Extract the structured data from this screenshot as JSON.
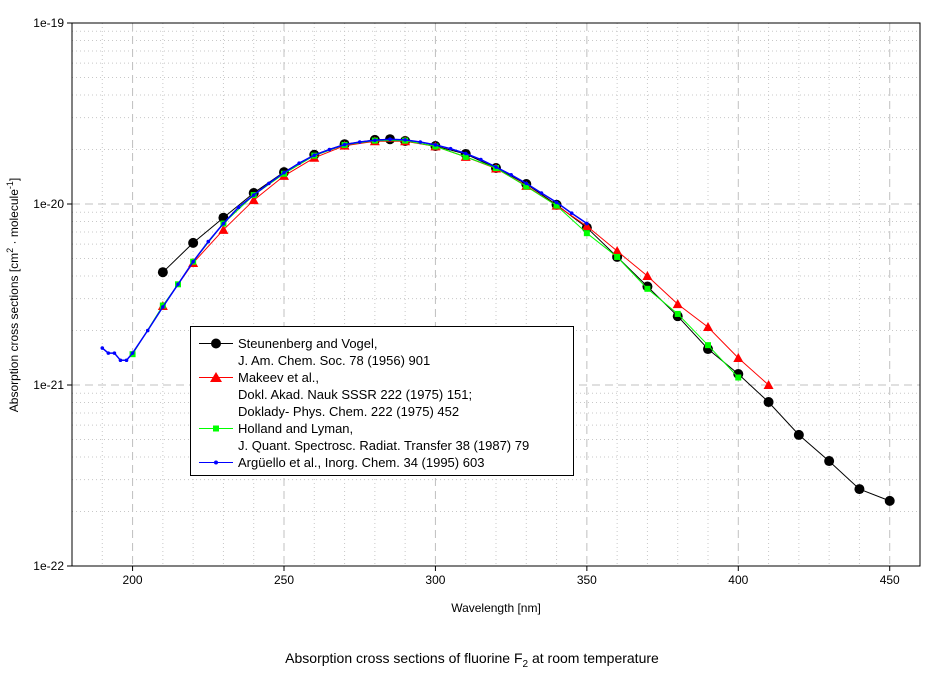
{
  "chart_data": {
    "type": "line",
    "title": "",
    "caption": "Absorption cross sections of fluorine F",
    "caption_sub": "2",
    "caption_tail": " at room temperature",
    "xlabel": "Wavelength [nm]",
    "ylabel_parts": [
      "Absorption cross sections [cm",
      "2",
      " · molecule",
      "-1",
      "]"
    ],
    "xlim": [
      180,
      460
    ],
    "ylim": [
      1e-22,
      1e-19
    ],
    "yscale": "log",
    "xticks": [
      200,
      250,
      300,
      350,
      400,
      450
    ],
    "xtick_labels": [
      "200",
      "250",
      "300",
      "350",
      "400",
      "450"
    ],
    "yticks": [
      1e-22,
      1e-21,
      1e-20,
      1e-19
    ],
    "ytick_labels": [
      "1e-22",
      "1e-21",
      "1e-20",
      "1e-19"
    ],
    "grid": true,
    "legend_placement": "lower-left-center",
    "series": [
      {
        "name": "Steunenberg and Vogel,",
        "name_lines": [
          "Steunenberg and Vogel,",
          "J. Am. Chem. Soc. 78 (1956) 901"
        ],
        "color": "#000000",
        "marker": "circle",
        "x": [
          210,
          220,
          230,
          240,
          250,
          260,
          270,
          280,
          285,
          290,
          300,
          310,
          320,
          330,
          340,
          350,
          360,
          370,
          380,
          390,
          400,
          410,
          420,
          430,
          440,
          450
        ],
        "y": [
          4.2e-21,
          6.1e-21,
          8.4e-21,
          1.15e-20,
          1.5e-20,
          1.87e-20,
          2.14e-20,
          2.26e-20,
          2.28e-20,
          2.23e-20,
          2.09e-20,
          1.89e-20,
          1.58e-20,
          1.29e-20,
          9.9e-21,
          7.4e-21,
          5.1e-21,
          3.5e-21,
          2.4e-21,
          1.58e-21,
          1.15e-21,
          8.05e-22,
          5.3e-22,
          3.8e-22,
          2.66e-22,
          2.29e-22
        ]
      },
      {
        "name": "Makeev et al.,",
        "name_lines": [
          "Makeev et al.,",
          "Dokl. Akad. Nauk SSSR 222 (1975) 151;",
          "Doklady- Phys. Chem. 222 (1975) 452"
        ],
        "color": "#ff0000",
        "marker": "triangle",
        "x": [
          210,
          220,
          230,
          240,
          250,
          260,
          270,
          280,
          290,
          300,
          310,
          320,
          330,
          340,
          350,
          360,
          370,
          380,
          390,
          400,
          410
        ],
        "y": [
          2.73e-21,
          4.72e-21,
          7.2e-21,
          1.05e-20,
          1.43e-20,
          1.8e-20,
          2.1e-20,
          2.22e-20,
          2.22e-20,
          2.08e-20,
          1.82e-20,
          1.57e-20,
          1.26e-20,
          9.8e-21,
          7.55e-21,
          5.5e-21,
          4e-21,
          2.8e-21,
          2.09e-21,
          1.41e-21,
          1e-21
        ]
      },
      {
        "name": "Holland and Lyman,",
        "name_lines": [
          "Holland and Lyman,",
          "J. Quant. Spectrosc. Radiat. Transfer 38 (1987) 79"
        ],
        "color": "#00ff00",
        "marker": "square",
        "x": [
          200,
          210,
          215,
          220,
          230,
          240,
          250,
          260,
          270,
          280,
          290,
          300,
          310,
          320,
          330,
          340,
          350,
          360,
          370,
          380,
          390,
          400
        ],
        "y": [
          1.48e-21,
          2.75e-21,
          3.6e-21,
          4.8e-21,
          7.8e-21,
          1.12e-20,
          1.47e-20,
          1.85e-20,
          2.12e-20,
          2.24e-20,
          2.24e-20,
          2.08e-20,
          1.82e-20,
          1.58e-20,
          1.25e-20,
          9.8e-21,
          6.9e-21,
          5.1e-21,
          3.4e-21,
          2.47e-21,
          1.66e-21,
          1.1e-21
        ]
      },
      {
        "name": "Argüello et al., Inorg. Chem. 34 (1995) 603",
        "name_lines": [
          "Argüello et al., Inorg. Chem. 34 (1995) 603"
        ],
        "color": "#0000ff",
        "marker": "dot",
        "x": [
          190,
          192,
          194,
          196,
          198,
          200,
          205,
          210,
          215,
          220,
          225,
          230,
          235,
          240,
          245,
          250,
          255,
          260,
          265,
          270,
          275,
          280,
          285,
          290,
          295,
          300,
          305,
          310,
          315,
          320,
          325,
          330,
          335,
          340,
          345,
          350
        ],
        "y": [
          1.6e-21,
          1.5e-21,
          1.5e-21,
          1.37e-21,
          1.37e-21,
          1.5e-21,
          2e-21,
          2.7e-21,
          3.6e-21,
          4.8e-21,
          6.2e-21,
          7.8e-21,
          9.6e-21,
          1.12e-20,
          1.3e-20,
          1.49e-20,
          1.68e-20,
          1.86e-20,
          2e-20,
          2.13e-20,
          2.2e-20,
          2.25e-20,
          2.28e-20,
          2.26e-20,
          2.2e-20,
          2.12e-20,
          2.02e-20,
          1.9e-20,
          1.76e-20,
          1.6e-20,
          1.45e-20,
          1.3e-20,
          1.15e-20,
          1.02e-20,
          8.9e-21,
          7.8e-21
        ]
      }
    ]
  }
}
